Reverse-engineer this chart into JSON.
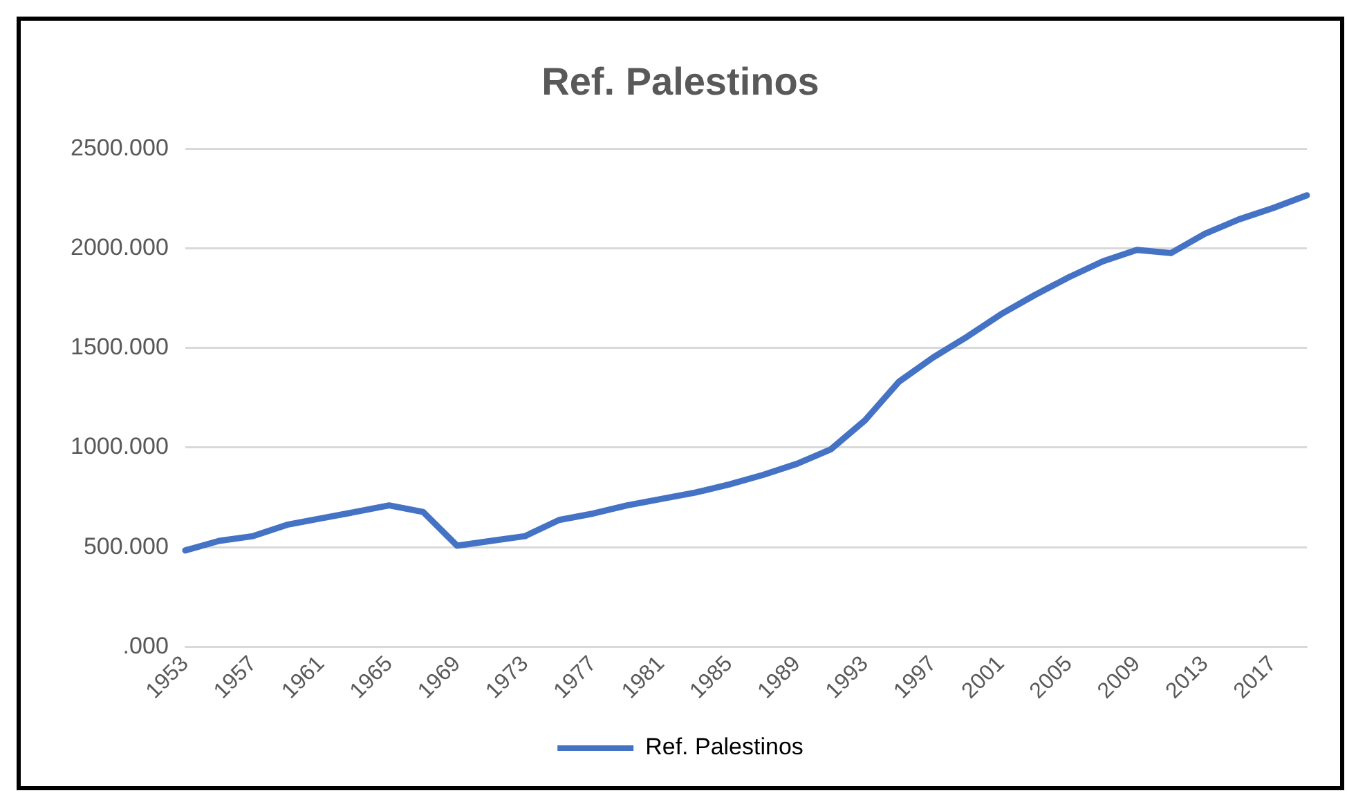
{
  "chart_data": {
    "type": "line",
    "title": "Ref. Palestinos",
    "categories": [
      "1953",
      null,
      "1957",
      null,
      "1961",
      null,
      "1965",
      null,
      "1969",
      null,
      "1973",
      null,
      "1977",
      null,
      "1981",
      null,
      "1985",
      null,
      "1989",
      null,
      "1993",
      null,
      "1997",
      null,
      "2001",
      null,
      "2005",
      null,
      "2009",
      null,
      "2013",
      null,
      "2017",
      null
    ],
    "series": [
      {
        "name": "Ref. Palestinos",
        "color": "#4472c4",
        "values": [
          484,
          532,
          556,
          613,
          645,
          677,
          710,
          677,
          508,
          532,
          556,
          637,
          669,
          710,
          742,
          774,
          815,
          863,
          919,
          992,
          1137,
          1331,
          1452,
          1556,
          1669,
          1766,
          1855,
          1935,
          1992,
          1976,
          2073,
          2145,
          2202,
          2266
        ]
      }
    ],
    "ylim": [
      0,
      2500
    ],
    "yticks": [
      {
        "value": 0,
        "label": ".000"
      },
      {
        "value": 500,
        "label": "500.000"
      },
      {
        "value": 1000,
        "label": "1000.000"
      },
      {
        "value": 1500,
        "label": "1500.000"
      },
      {
        "value": 2000,
        "label": "2000.000"
      },
      {
        "value": 2500,
        "label": "2500.000"
      }
    ],
    "grid": "y",
    "legend": "bottom",
    "marker": "none",
    "line_style": "solid"
  }
}
